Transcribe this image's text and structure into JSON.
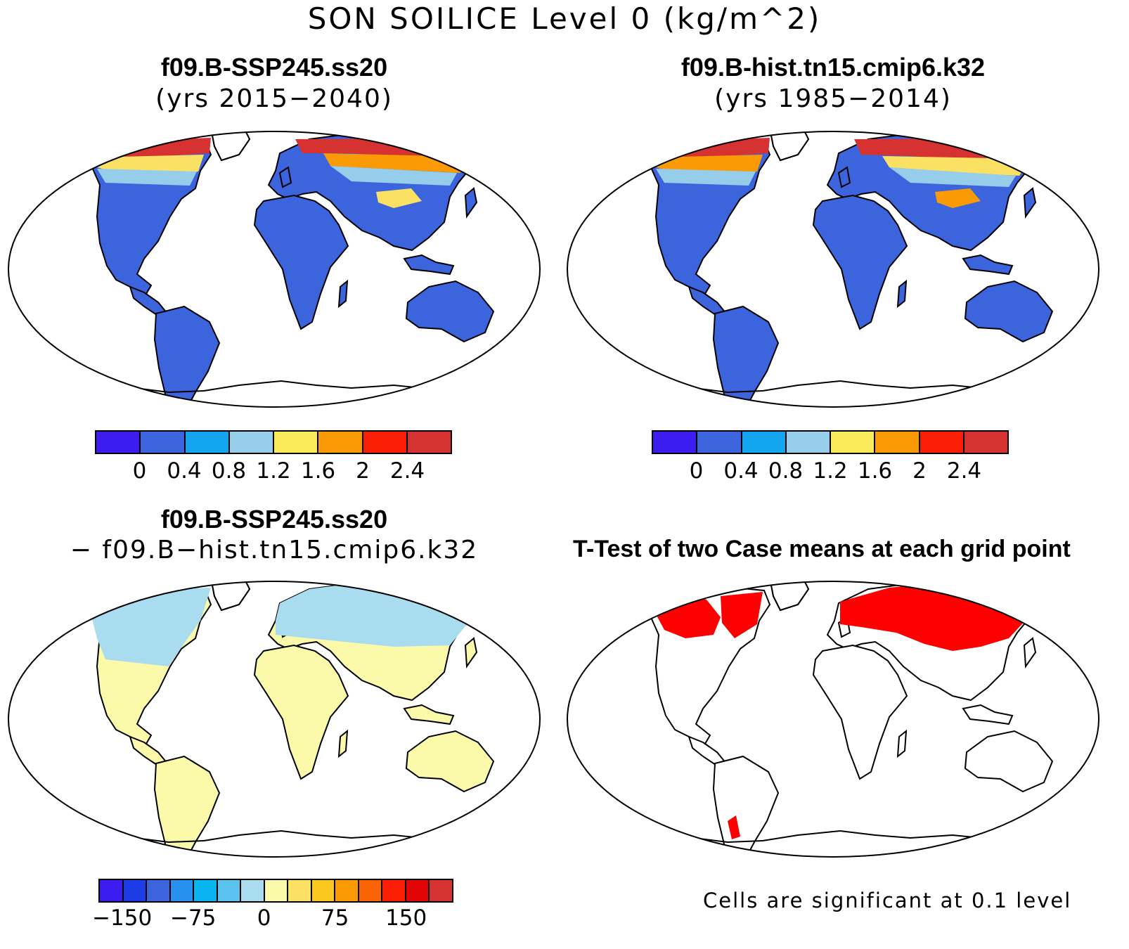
{
  "title": "SON SOILICE Level 0 (kg/m^2)",
  "panels": [
    {
      "id": "top-left",
      "case": "f09.B-SSP245.ss20",
      "years": "(yrs 2015−2040)",
      "fill": "abs"
    },
    {
      "id": "top-right",
      "case": "f09.B-hist.tn15.cmip6.k32",
      "years": "(yrs 1985−2014)",
      "fill": "abs"
    },
    {
      "id": "bottom-left",
      "case": "f09.B-SSP245.ss20",
      "years": "− f09.B−hist.tn15.cmip6.k32",
      "fill": "diff"
    },
    {
      "id": "bottom-right",
      "title": "T-Test of two Case means at each grid point",
      "note": "Cells are significant at 0.1 level",
      "fill": "ttest"
    }
  ],
  "colorbar_abs": {
    "colors": [
      "#3d1cf0",
      "#3c64dc",
      "#14a5f0",
      "#96cdeb",
      "#faeb5a",
      "#fa9b05",
      "#fa1e05",
      "#d73232"
    ],
    "labels": [
      "0",
      "0.4",
      "0.8",
      "1.2",
      "1.6",
      "2",
      "2.4"
    ]
  },
  "colorbar_diff": {
    "colors": [
      "#3d1cf0",
      "#1c3ce6",
      "#3c64dc",
      "#2891f0",
      "#0ab4f0",
      "#5ac3f0",
      "#aadcf0",
      "#fafaaa",
      "#fae164",
      "#fac81e",
      "#fa9b05",
      "#fa6405",
      "#fa1e05",
      "#e10505",
      "#d73232"
    ],
    "labels": [
      "−150",
      "−75",
      "0",
      "75",
      "150"
    ]
  }
}
